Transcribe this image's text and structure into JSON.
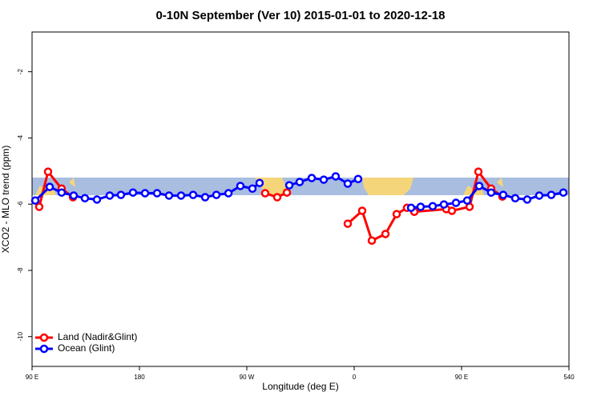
{
  "chart_data": {
    "type": "line",
    "title": "0-10N September (Ver 10)   2015-01-01 to 2020-12-18",
    "x_label": "Longitude (deg E)",
    "y_label": "XCO2 - MLO trend (ppm)",
    "xlim": [
      90,
      540
    ],
    "ylim": [
      -10.9,
      -0.8
    ],
    "xticks": [
      {
        "value": 90,
        "label": "90 E"
      },
      180,
      {
        "value": 270,
        "label": "90 W"
      },
      {
        "value": 360,
        "label": "0"
      },
      {
        "value": 450,
        "label": "90 E"
      },
      540
    ],
    "yticks": [
      -10,
      -8,
      -6,
      -4,
      -2
    ],
    "legend": "bottom-left",
    "series": [
      {
        "name": "Land (Nadir&Glint)",
        "color": "#ff0000",
        "x": [
          96,
          103.4,
          114.8,
          124.3,
          null,
          285.4,
          295.5,
          303.6,
          null,
          354.6,
          366.7,
          374.8,
          386.2,
          395.6,
          404.3,
          410.4,
          437.2,
          441.9,
          456.7,
          464.1,
          474.8,
          484.2
        ],
        "values": [
          -6.08,
          -5.02,
          -5.53,
          -5.79,
          null,
          -5.67,
          -5.79,
          -5.65,
          null,
          -6.59,
          -6.2,
          -7.1,
          -6.9,
          -6.3,
          -6.11,
          -6.23,
          -6.15,
          -6.2,
          -6.08,
          -5.02,
          -5.53,
          -5.77
        ]
      },
      {
        "name": "Ocean (Glint)",
        "color": "#0000ff",
        "x": [
          92.7,
          104.8,
          114.8,
          124.9,
          134.3,
          144.4,
          155.1,
          164.5,
          174.6,
          184.7,
          194.8,
          204.8,
          214.9,
          225,
          235.1,
          244.5,
          254.6,
          264.6,
          274.7,
          280.7,
          null,
          305.6,
          314.3,
          324.4,
          334.5,
          344.5,
          354.6,
          363.3,
          null,
          407.7,
          415.7,
          425.8,
          435.2,
          445.3,
          454.7,
          464.8,
          474.8,
          484.9,
          495,
          505,
          515.1,
          525.2,
          535.3
        ],
        "values": [
          -5.89,
          -5.48,
          -5.65,
          -5.74,
          -5.82,
          -5.86,
          -5.74,
          -5.72,
          -5.65,
          -5.67,
          -5.67,
          -5.74,
          -5.74,
          -5.72,
          -5.79,
          -5.72,
          -5.67,
          -5.45,
          -5.53,
          -5.36,
          null,
          -5.43,
          -5.33,
          -5.21,
          -5.26,
          -5.16,
          -5.38,
          -5.24,
          null,
          -6.11,
          -6.08,
          -6.06,
          -6.01,
          -5.96,
          -5.89,
          -5.45,
          -5.65,
          -5.72,
          -5.82,
          -5.86,
          -5.74,
          -5.72,
          -5.65
        ]
      }
    ]
  }
}
